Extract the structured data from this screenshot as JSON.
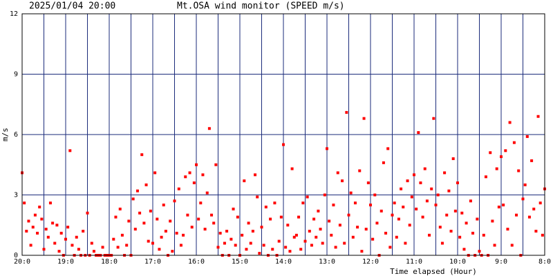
{
  "chart_data": {
    "type": "scatter",
    "date": "2025/01/04 20:00",
    "title": "Mt.OSA wind monitor (SPEED m/s)",
    "y_label": "m/s",
    "x_label": "Time elapsed (Hour)",
    "xlim": [
      0,
      12
    ],
    "xticks": [
      {
        "value": 0,
        "label": "20:0"
      },
      {
        "value": 1,
        "label": "19:0"
      },
      {
        "value": 2,
        "label": "18:0"
      },
      {
        "value": 3,
        "label": "17:0"
      },
      {
        "value": 4,
        "label": "16:0"
      },
      {
        "value": 5,
        "label": "15:0"
      },
      {
        "value": 6,
        "label": "14:0"
      },
      {
        "value": 7,
        "label": "13:0"
      },
      {
        "value": 8,
        "label": "12:0"
      },
      {
        "value": 9,
        "label": "11:0"
      },
      {
        "value": 10,
        "label": "10:0"
      },
      {
        "value": 11,
        "label": "9:0"
      },
      {
        "value": 12,
        "label": "8:0"
      }
    ],
    "minor_xticks": [
      0.5,
      1.5,
      2.5,
      3.5,
      4.5,
      5.5,
      6.5,
      7.5,
      8.5,
      9.5,
      10.5,
      11.5
    ],
    "ylim": [
      0,
      12
    ],
    "yticks": [
      0,
      3,
      6,
      9,
      12
    ],
    "grid": true,
    "series": [
      {
        "name": "SPEED",
        "color": "#ff0000",
        "x": [
          0,
          0.05,
          0.1,
          0.15,
          0.2,
          0.25,
          0.3,
          0.35,
          0.4,
          0.45,
          0.5,
          0.55,
          0.6,
          0.65,
          0.7,
          0.75,
          0.8,
          0.85,
          0.9,
          0.95,
          1,
          1.05,
          1.1,
          1.15,
          1.2,
          1.25,
          1.3,
          1.35,
          1.4,
          1.45,
          1.5,
          1.55,
          1.6,
          1.65,
          1.7,
          1.75,
          1.8,
          1.85,
          1.9,
          1.95,
          2,
          2.05,
          2.1,
          2.15,
          2.2,
          2.25,
          2.3,
          2.35,
          2.4,
          2.45,
          2.5,
          2.55,
          2.6,
          2.65,
          2.7,
          2.75,
          2.8,
          2.85,
          2.9,
          2.95,
          3,
          3.05,
          3.1,
          3.15,
          3.2,
          3.25,
          3.3,
          3.35,
          3.4,
          3.45,
          3.5,
          3.55,
          3.6,
          3.65,
          3.7,
          3.75,
          3.8,
          3.85,
          3.9,
          3.95,
          4,
          4.05,
          4.1,
          4.15,
          4.2,
          4.25,
          4.3,
          4.35,
          4.4,
          4.45,
          4.5,
          4.55,
          4.6,
          4.65,
          4.7,
          4.75,
          4.8,
          4.85,
          4.9,
          4.95,
          5,
          5.05,
          5.1,
          5.15,
          5.2,
          5.25,
          5.3,
          5.35,
          5.4,
          5.45,
          5.5,
          5.55,
          5.6,
          5.65,
          5.7,
          5.75,
          5.8,
          5.85,
          5.9,
          5.95,
          6,
          6.05,
          6.1,
          6.15,
          6.2,
          6.25,
          6.3,
          6.35,
          6.4,
          6.45,
          6.5,
          6.55,
          6.6,
          6.65,
          6.7,
          6.75,
          6.8,
          6.85,
          6.9,
          6.95,
          7,
          7.05,
          7.1,
          7.15,
          7.2,
          7.25,
          7.3,
          7.35,
          7.4,
          7.45,
          7.5,
          7.55,
          7.6,
          7.65,
          7.7,
          7.75,
          7.8,
          7.85,
          7.9,
          7.95,
          8,
          8.05,
          8.1,
          8.15,
          8.2,
          8.25,
          8.3,
          8.35,
          8.4,
          8.45,
          8.5,
          8.55,
          8.6,
          8.65,
          8.7,
          8.75,
          8.8,
          8.85,
          8.9,
          8.95,
          9,
          9.05,
          9.1,
          9.15,
          9.2,
          9.25,
          9.3,
          9.35,
          9.4,
          9.45,
          9.5,
          9.55,
          9.6,
          9.65,
          9.7,
          9.75,
          9.8,
          9.85,
          9.9,
          9.95,
          10,
          10.05,
          10.1,
          10.15,
          10.2,
          10.25,
          10.3,
          10.35,
          10.4,
          10.45,
          10.5,
          10.55,
          10.6,
          10.65,
          10.7,
          10.75,
          10.8,
          10.85,
          10.9,
          10.95,
          11,
          11.05,
          11.1,
          11.15,
          11.2,
          11.25,
          11.3,
          11.35,
          11.4,
          11.45,
          11.5,
          11.55,
          11.6,
          11.65,
          11.7,
          11.75,
          11.8,
          11.85,
          11.9,
          11.95,
          12
        ],
        "values": [
          4.1,
          2.6,
          1.2,
          1.7,
          0.5,
          1.4,
          2.0,
          1.1,
          2.4,
          1.8,
          0.3,
          1.3,
          0.9,
          2.6,
          1.6,
          0.6,
          1.5,
          0.2,
          1.1,
          0.0,
          0.8,
          1.4,
          5.2,
          0.5,
          0.0,
          0.9,
          0.3,
          0.0,
          1.2,
          0.0,
          2.1,
          0.0,
          0.6,
          0.2,
          0.0,
          0.0,
          0.0,
          0.4,
          0.0,
          0.0,
          0.0,
          0.0,
          0.8,
          1.9,
          0.4,
          2.3,
          1.0,
          0.0,
          0.5,
          1.7,
          0.0,
          2.8,
          1.3,
          3.2,
          2.1,
          5.0,
          1.6,
          3.5,
          0.7,
          2.2,
          0.6,
          4.1,
          1.8,
          0.3,
          0.9,
          2.5,
          1.2,
          0.0,
          1.7,
          0.2,
          2.7,
          1.1,
          3.3,
          0.5,
          1.0,
          3.9,
          2.0,
          4.1,
          1.4,
          3.6,
          4.5,
          1.8,
          2.6,
          4.0,
          1.3,
          3.1,
          6.3,
          2.0,
          1.6,
          4.5,
          0.4,
          1.1,
          0.0,
          0.6,
          1.2,
          0.0,
          0.8,
          2.3,
          0.5,
          1.9,
          0.0,
          1.0,
          3.7,
          0.3,
          1.6,
          0.6,
          1.2,
          4.0,
          2.9,
          0.1,
          1.4,
          0.5,
          2.4,
          0.0,
          1.8,
          0.3,
          2.6,
          0.0,
          0.7,
          1.9,
          5.5,
          0.4,
          1.5,
          0.2,
          4.3,
          0.9,
          1.0,
          1.9,
          0.3,
          2.6,
          0.7,
          2.9,
          1.2,
          0.5,
          1.8,
          0.9,
          2.2,
          1.3,
          0.6,
          3.0,
          5.3,
          1.7,
          1.0,
          2.5,
          0.4,
          4.1,
          1.5,
          3.7,
          0.6,
          7.1,
          2.0,
          3.1,
          0.9,
          2.6,
          1.4,
          4.2,
          0.2,
          6.8,
          1.3,
          3.6,
          2.5,
          0.8,
          3.0,
          1.6,
          0.0,
          2.2,
          4.6,
          1.1,
          5.3,
          0.4,
          2.0,
          2.6,
          0.9,
          1.8,
          3.3,
          2.4,
          0.6,
          3.7,
          1.5,
          2.9,
          4.0,
          2.3,
          6.1,
          3.6,
          1.9,
          4.3,
          2.7,
          1.0,
          3.3,
          6.8,
          2.5,
          3.0,
          1.4,
          0.6,
          4.1,
          2.0,
          3.2,
          1.2,
          4.8,
          2.2,
          3.6,
          0.9,
          2.1,
          0.3,
          1.6,
          0.0,
          2.7,
          1.1,
          0.0,
          1.8,
          0.2,
          0.0,
          1.0,
          3.9,
          0.0,
          5.1,
          1.7,
          0.5,
          4.3,
          2.4,
          4.9,
          2.5,
          5.2,
          1.3,
          6.6,
          0.5,
          5.6,
          2.0,
          4.2,
          0.0,
          2.8,
          3.5,
          5.9,
          1.9,
          4.7,
          2.3,
          1.2,
          6.9,
          2.6,
          1.0,
          3.3
        ]
      }
    ]
  }
}
